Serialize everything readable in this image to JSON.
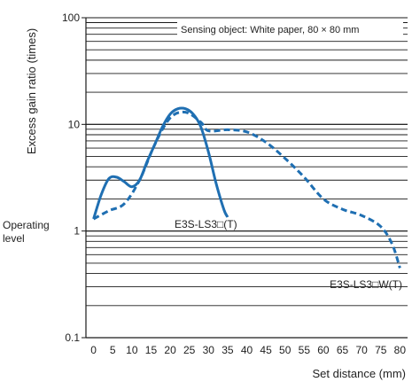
{
  "chart_data": {
    "type": "line",
    "xlabel": "Set distance (mm)",
    "ylabel": "Excess gain ratio (times)",
    "yscale": "log",
    "ylim": [
      0.1,
      100
    ],
    "xlim": [
      -2,
      82
    ],
    "x_ticks": [
      "0",
      "5",
      "10",
      "15",
      "20",
      "25",
      "30",
      "35",
      "40",
      "45",
      "50",
      "55",
      "60",
      "65",
      "70",
      "75",
      "80"
    ],
    "y_ticks": [
      "0.1",
      "1",
      "10",
      "100"
    ],
    "grid": "horizontal",
    "side_annotation": [
      "Operating",
      "level"
    ],
    "operating_level": 1,
    "note": "Sensing object: White paper, 80 × 80 mm",
    "series": [
      {
        "name": "E3S-LS3□(T)",
        "style": "solid",
        "color": "#1f6fb2",
        "x": [
          0,
          2,
          4,
          6,
          8,
          10,
          12,
          14,
          16,
          18,
          20,
          22,
          24,
          26,
          28,
          30,
          32,
          34,
          35
        ],
        "y": [
          1.3,
          2.2,
          3.1,
          3.2,
          2.9,
          2.6,
          3.0,
          4.5,
          6.5,
          9.5,
          12.5,
          14.0,
          14.0,
          12.5,
          9.5,
          5.5,
          2.8,
          1.6,
          1.35
        ]
      },
      {
        "name": "E3S-LS3□W(T)",
        "style": "dashed",
        "color": "#1f6fb2",
        "x": [
          0,
          4,
          8,
          12,
          16,
          20,
          24,
          28,
          30,
          35,
          40,
          45,
          50,
          55,
          60,
          65,
          70,
          75,
          78,
          80
        ],
        "y": [
          1.3,
          1.55,
          1.8,
          3.0,
          6.5,
          11.5,
          13.0,
          10.5,
          8.7,
          8.9,
          8.5,
          6.8,
          4.8,
          3.2,
          2.0,
          1.6,
          1.4,
          1.1,
          0.75,
          0.45
        ]
      }
    ]
  }
}
